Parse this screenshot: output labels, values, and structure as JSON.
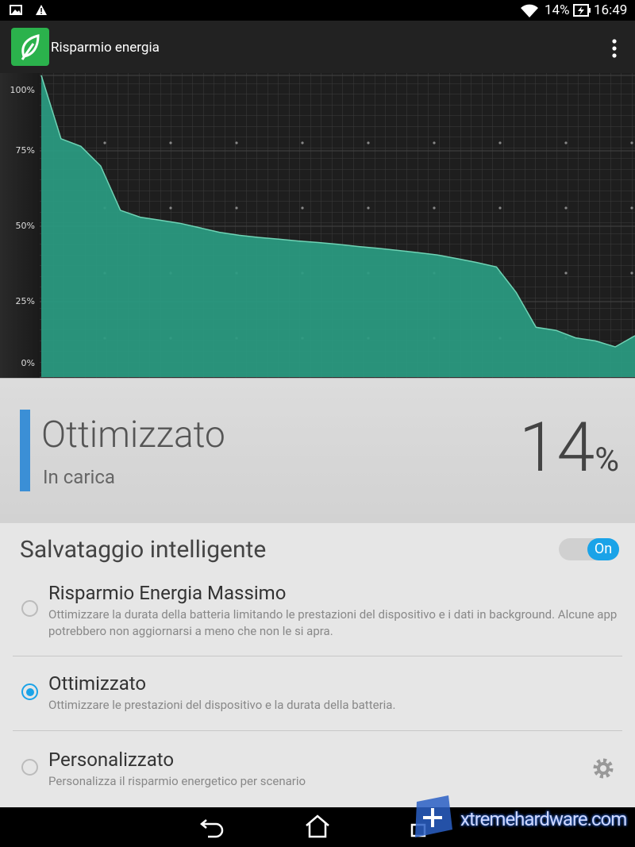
{
  "status_bar": {
    "battery": "14%",
    "time": "16:49"
  },
  "app_bar": {
    "title": "Risparmio energia"
  },
  "battery_chart": {
    "type": "area",
    "color": "#2a9c82",
    "values": [
      100,
      79,
      76.5,
      70,
      55.3,
      53,
      52,
      51,
      49.5,
      48,
      47,
      46.3,
      45.7,
      45.1,
      44.6,
      44,
      43.3,
      42.7,
      42,
      41.3,
      40.5,
      39.3,
      38,
      36.5,
      28,
      16.5,
      15.5,
      13,
      12,
      10,
      13.7
    ],
    "ylim": [
      0,
      100
    ],
    "yticks": [
      {
        "value": 0,
        "label": "0%"
      },
      {
        "value": 25,
        "label": "25%"
      },
      {
        "value": 50,
        "label": "50%"
      },
      {
        "value": 75,
        "label": "75%"
      },
      {
        "value": 100,
        "label": "100%"
      }
    ]
  },
  "status_panel": {
    "mode": "Ottimizzato",
    "state": "In carica",
    "percent": "14",
    "unit": "%"
  },
  "settings": {
    "title": "Salvataggio intelligente",
    "toggle": "On",
    "options": [
      {
        "title": "Risparmio Energia Massimo",
        "description": "Ottimizzare la durata della batteria limitando le prestazioni del dispositivo e i dati in background. Alcune app potrebbero non aggiornarsi a meno che non le si apra."
      },
      {
        "title": "Ottimizzato",
        "description": "Ottimizzare le prestazioni del dispositivo e la durata della batteria."
      },
      {
        "title": "Personalizzato",
        "description": "Personalizza il risparmio energetico per scenario"
      }
    ]
  },
  "watermark": "xtremehardware.com"
}
